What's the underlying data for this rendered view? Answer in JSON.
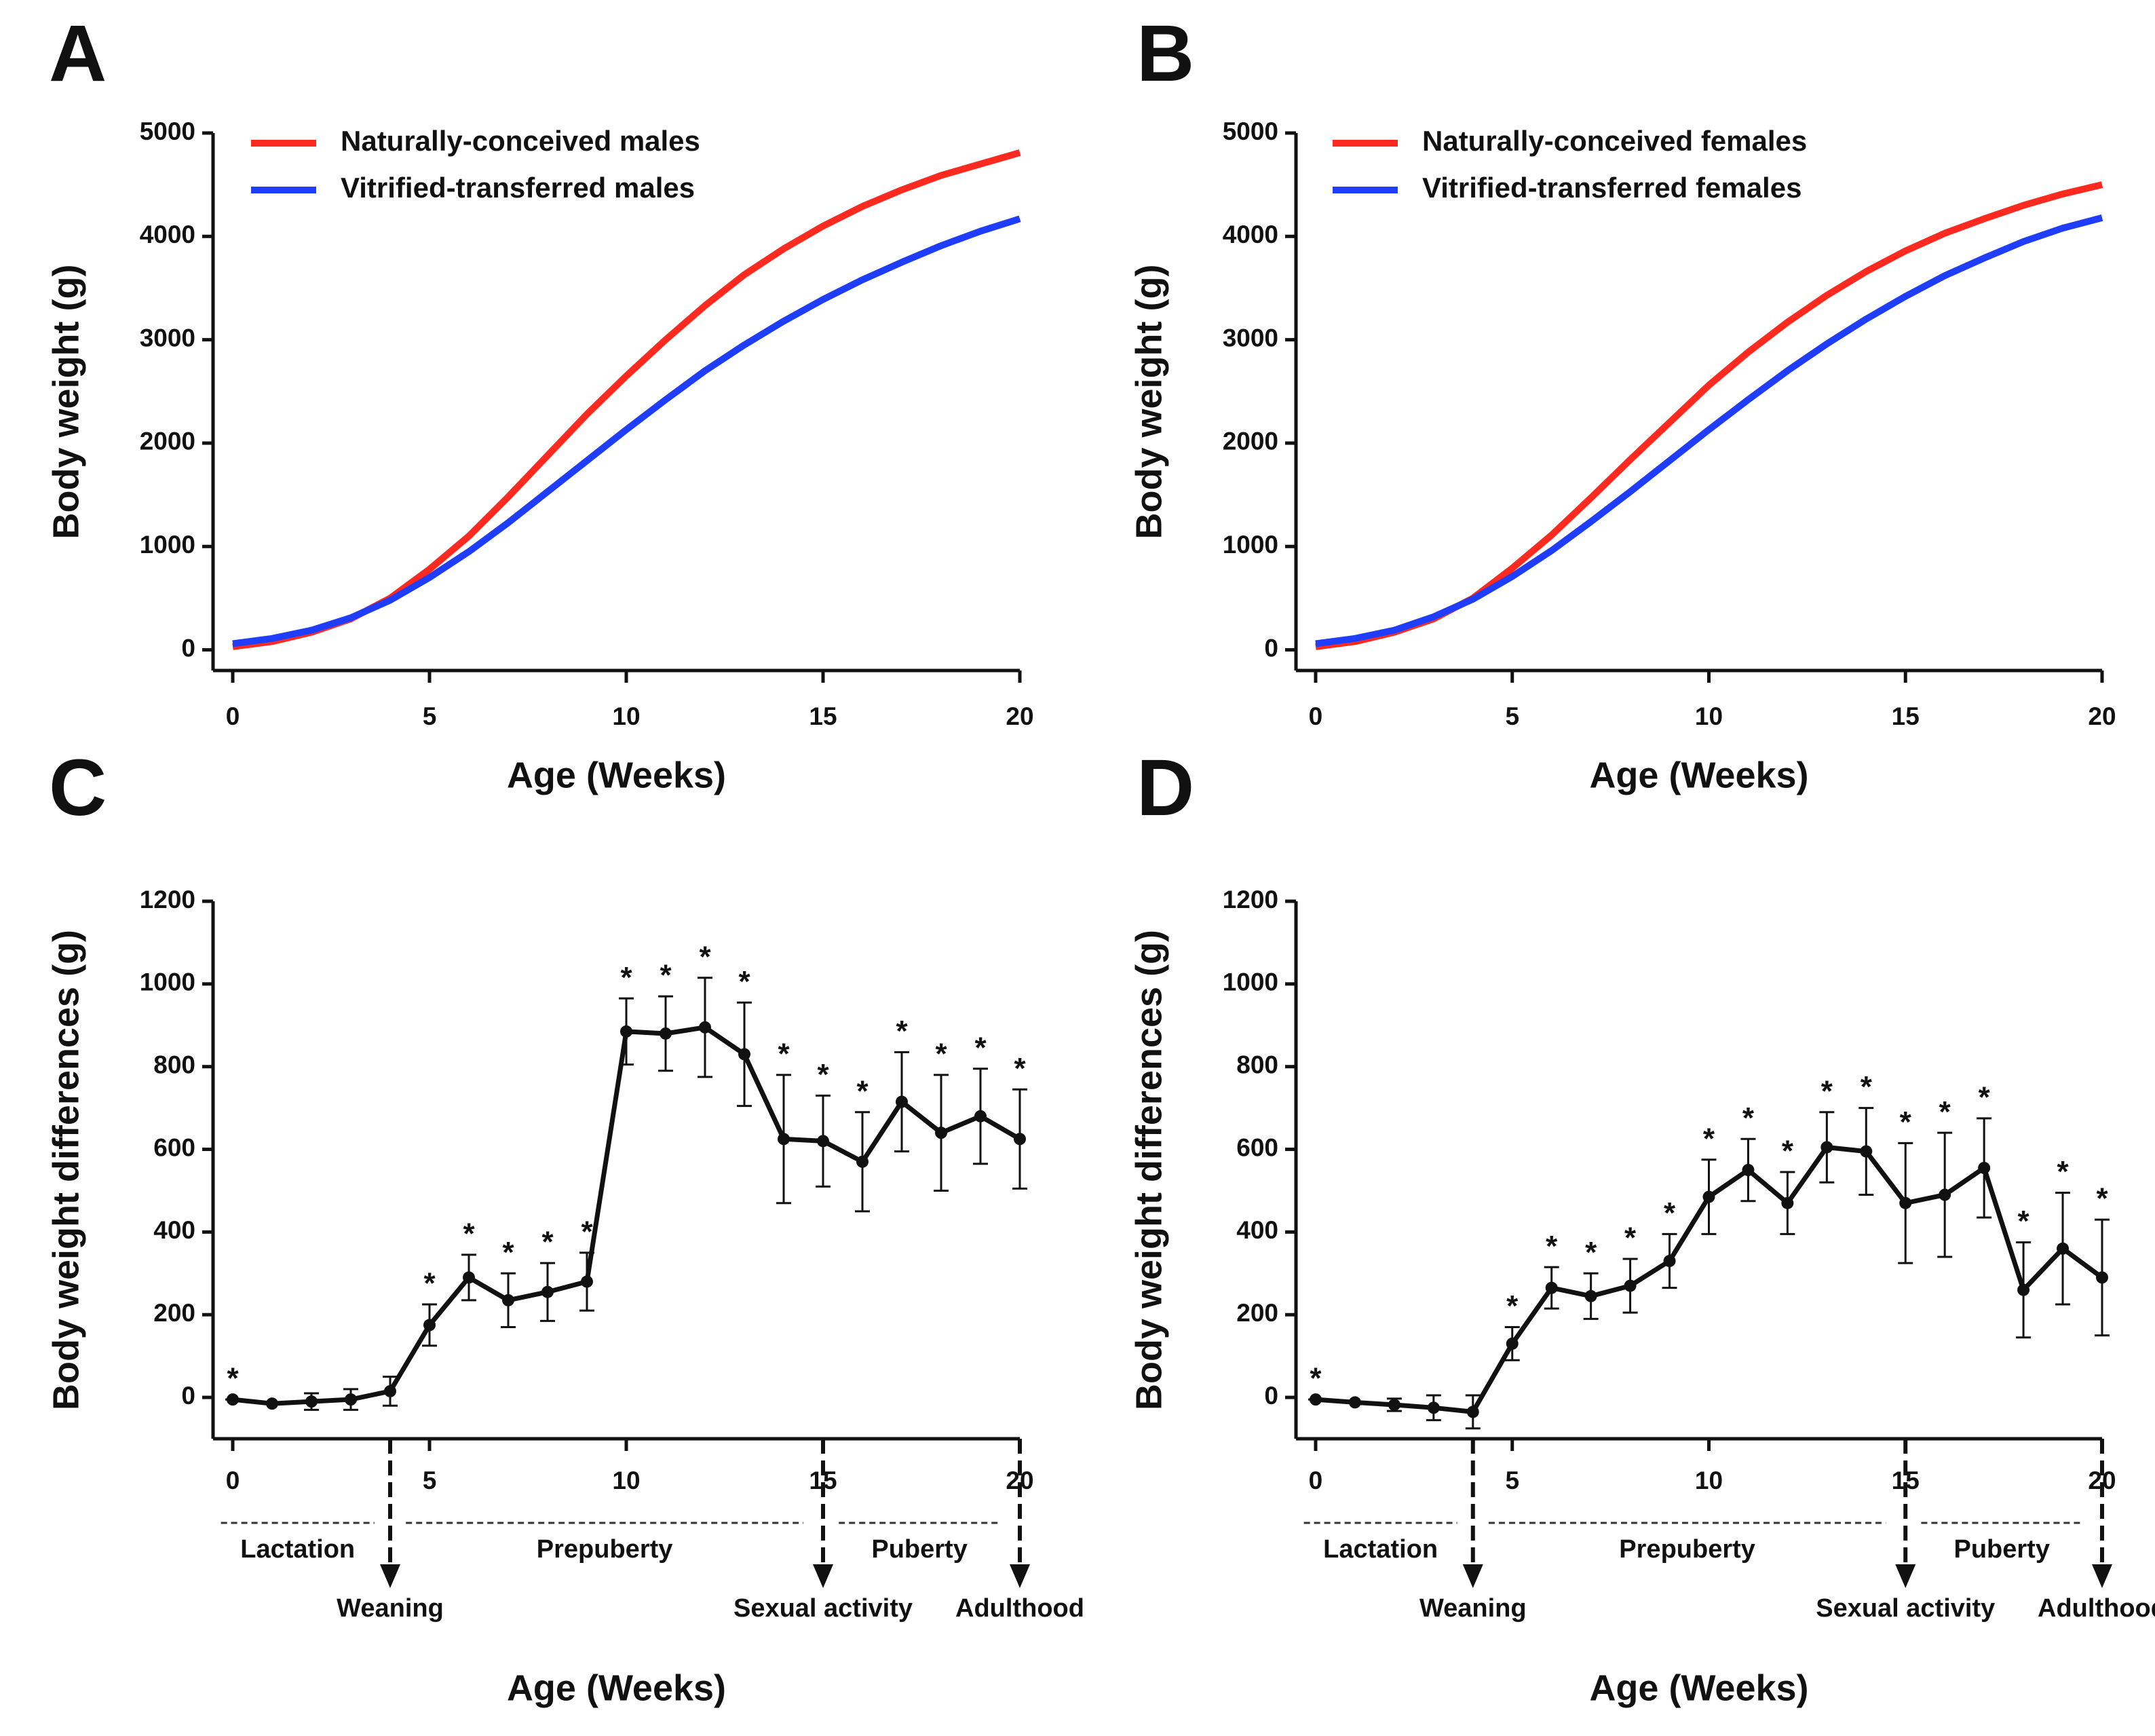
{
  "chart_data": [
    {
      "type": "line",
      "panel_label": "A",
      "xlabel": "Age (Weeks)",
      "ylabel": "Body weight (g)",
      "x": [
        0,
        1,
        2,
        3,
        4,
        5,
        6,
        7,
        8,
        9,
        10,
        11,
        12,
        13,
        14,
        15,
        16,
        17,
        18,
        19,
        20
      ],
      "series": [
        {
          "name": "Naturally-conceived males",
          "color": "#ff2a1f",
          "values": [
            30,
            80,
            170,
            300,
            500,
            780,
            1100,
            1480,
            1880,
            2280,
            2650,
            3000,
            3330,
            3630,
            3880,
            4100,
            4290,
            4450,
            4590,
            4700,
            4810
          ]
        },
        {
          "name": "Vitrified-transferred males",
          "color": "#1f3dff",
          "values": [
            60,
            110,
            190,
            310,
            480,
            700,
            950,
            1230,
            1530,
            1830,
            2130,
            2420,
            2700,
            2950,
            3180,
            3390,
            3580,
            3750,
            3910,
            4050,
            4170
          ]
        }
      ],
      "xlim": [
        -0.5,
        20
      ],
      "xticks": [
        0,
        5,
        10,
        15,
        20
      ],
      "ylim": [
        -200,
        5000
      ],
      "yticks": [
        0,
        1000,
        2000,
        3000,
        4000,
        5000
      ]
    },
    {
      "type": "line",
      "panel_label": "B",
      "xlabel": "Age (Weeks)",
      "ylabel": "Body weight (g)",
      "x": [
        0,
        1,
        2,
        3,
        4,
        5,
        6,
        7,
        8,
        9,
        10,
        11,
        12,
        13,
        14,
        15,
        16,
        17,
        18,
        19,
        20
      ],
      "series": [
        {
          "name": "Naturally-conceived females",
          "color": "#ff2a1f",
          "values": [
            30,
            80,
            170,
            300,
            500,
            790,
            1110,
            1470,
            1840,
            2200,
            2560,
            2880,
            3170,
            3430,
            3660,
            3860,
            4030,
            4170,
            4300,
            4410,
            4500
          ]
        },
        {
          "name": "Vitrified-transferred females",
          "color": "#1f3dff",
          "values": [
            60,
            110,
            190,
            320,
            490,
            710,
            960,
            1240,
            1530,
            1830,
            2130,
            2420,
            2700,
            2960,
            3200,
            3420,
            3620,
            3790,
            3950,
            4080,
            4180
          ]
        }
      ],
      "xlim": [
        -0.5,
        20
      ],
      "xticks": [
        0,
        5,
        10,
        15,
        20
      ],
      "ylim": [
        -200,
        5000
      ],
      "yticks": [
        0,
        1000,
        2000,
        3000,
        4000,
        5000
      ]
    },
    {
      "type": "line",
      "panel_label": "C",
      "xlabel": "Age (Weeks)",
      "ylabel": "Body weight differences (g)",
      "color": "#111111",
      "x": [
        0,
        1,
        2,
        3,
        4,
        5,
        6,
        7,
        8,
        9,
        10,
        11,
        12,
        13,
        14,
        15,
        16,
        17,
        18,
        19,
        20
      ],
      "values": [
        -5,
        -15,
        -10,
        -5,
        15,
        175,
        290,
        235,
        255,
        280,
        885,
        880,
        895,
        830,
        625,
        620,
        570,
        715,
        640,
        680,
        625
      ],
      "errors": [
        0,
        0,
        20,
        25,
        35,
        50,
        55,
        65,
        70,
        70,
        80,
        90,
        120,
        125,
        155,
        110,
        120,
        120,
        140,
        115,
        120
      ],
      "significance": [
        "*",
        null,
        null,
        null,
        null,
        "*",
        "*",
        "*",
        "*",
        "*",
        "*",
        "*",
        "*",
        "*",
        "*",
        "*",
        "*",
        "*",
        "*",
        "*",
        "*"
      ],
      "phases": [
        {
          "label": "Lactation",
          "start": -0.3,
          "end": 3.6
        },
        {
          "label": "Prepuberty",
          "start": 4.4,
          "end": 14.5
        },
        {
          "label": "Puberty",
          "start": 15.4,
          "end": 19.5
        }
      ],
      "milestones": [
        {
          "label": "Weaning",
          "x": 4
        },
        {
          "label": "Sexual activity",
          "x": 15
        },
        {
          "label": "Adulthood",
          "x": 20
        }
      ],
      "xlim": [
        -0.5,
        20
      ],
      "xticks": [
        0,
        5,
        10,
        15,
        20
      ],
      "ylim": [
        -100,
        1200
      ],
      "yticks": [
        0,
        200,
        400,
        600,
        800,
        1000,
        1200
      ]
    },
    {
      "type": "line",
      "panel_label": "D",
      "xlabel": "Age (Weeks)",
      "ylabel": "Body weight differences (g)",
      "color": "#111111",
      "x": [
        0,
        1,
        2,
        3,
        4,
        5,
        6,
        7,
        8,
        9,
        10,
        11,
        12,
        13,
        14,
        15,
        16,
        17,
        18,
        19,
        20
      ],
      "values": [
        -5,
        -12,
        -18,
        -25,
        -35,
        130,
        265,
        245,
        270,
        330,
        485,
        550,
        470,
        605,
        595,
        470,
        490,
        555,
        260,
        360,
        290
      ],
      "errors": [
        0,
        0,
        15,
        30,
        40,
        40,
        50,
        55,
        65,
        65,
        90,
        75,
        75,
        85,
        105,
        145,
        150,
        120,
        115,
        135,
        140
      ],
      "significance": [
        "*",
        null,
        null,
        null,
        null,
        "*",
        "*",
        "*",
        "*",
        "*",
        "*",
        "*",
        "*",
        "*",
        "*",
        "*",
        "*",
        "*",
        "*",
        "*",
        "*"
      ],
      "phases": [
        {
          "label": "Lactation",
          "start": -0.3,
          "end": 3.6
        },
        {
          "label": "Prepuberty",
          "start": 4.4,
          "end": 14.5
        },
        {
          "label": "Puberty",
          "start": 15.4,
          "end": 19.5
        }
      ],
      "milestones": [
        {
          "label": "Weaning",
          "x": 4
        },
        {
          "label": "Sexual activity",
          "x": 15
        },
        {
          "label": "Adulthood",
          "x": 20
        }
      ],
      "xlim": [
        -0.5,
        20
      ],
      "xticks": [
        0,
        5,
        10,
        15,
        20
      ],
      "ylim": [
        -100,
        1200
      ],
      "yticks": [
        0,
        200,
        400,
        600,
        800,
        1000,
        1200
      ]
    }
  ]
}
